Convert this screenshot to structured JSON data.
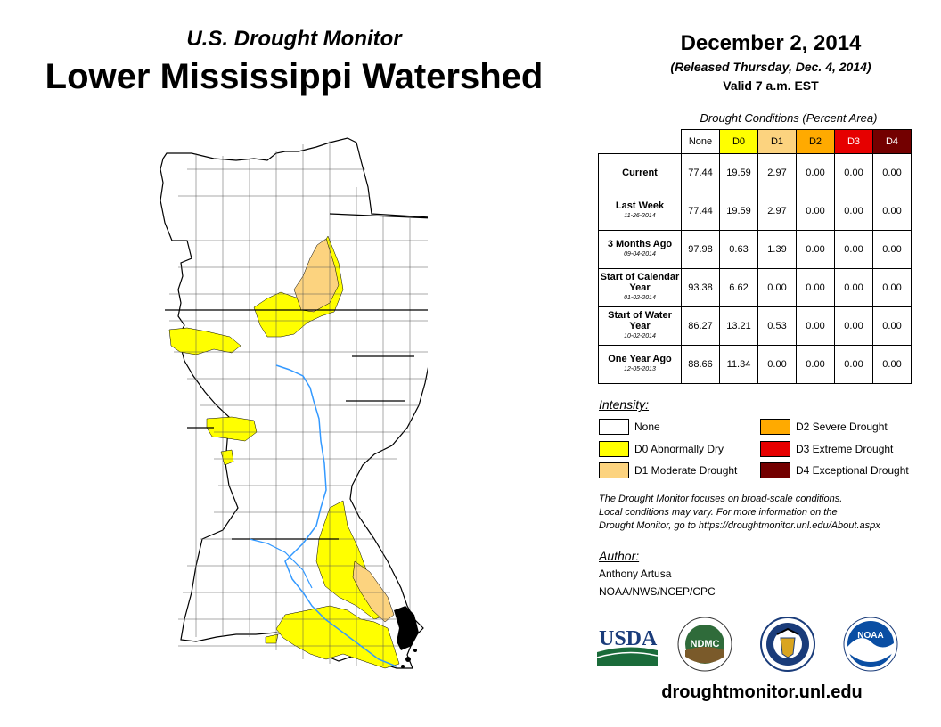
{
  "header": {
    "subtitle": "U.S. Drought Monitor",
    "title": "Lower Mississippi Watershed",
    "date": "December 2, 2014",
    "released": "(Released Thursday, Dec. 4, 2014)",
    "valid": "Valid 7 a.m. EST"
  },
  "conditions": {
    "caption": "Drought Conditions (Percent Area)",
    "columns": [
      "None",
      "D0",
      "D1",
      "D2",
      "D3",
      "D4"
    ],
    "column_colors": [
      "#ffffff",
      "#ffff00",
      "#fcd37f",
      "#ffaa00",
      "#e60000",
      "#730000"
    ],
    "rows": [
      {
        "label": "Current",
        "sub": "",
        "values": [
          "77.44",
          "19.59",
          "2.97",
          "0.00",
          "0.00",
          "0.00"
        ]
      },
      {
        "label": "Last Week",
        "sub": "11-26-2014",
        "values": [
          "77.44",
          "19.59",
          "2.97",
          "0.00",
          "0.00",
          "0.00"
        ]
      },
      {
        "label": "3 Months Ago",
        "sub": "09-04-2014",
        "values": [
          "97.98",
          "0.63",
          "1.39",
          "0.00",
          "0.00",
          "0.00"
        ]
      },
      {
        "label": "Start of Calendar Year",
        "sub": "01-02-2014",
        "values": [
          "93.38",
          "6.62",
          "0.00",
          "0.00",
          "0.00",
          "0.00"
        ]
      },
      {
        "label": "Start of Water Year",
        "sub": "10-02-2014",
        "values": [
          "86.27",
          "13.21",
          "0.53",
          "0.00",
          "0.00",
          "0.00"
        ]
      },
      {
        "label": "One Year Ago",
        "sub": "12-05-2013",
        "values": [
          "88.66",
          "11.34",
          "0.00",
          "0.00",
          "0.00",
          "0.00"
        ]
      }
    ]
  },
  "legend": {
    "heading": "Intensity:",
    "items": [
      {
        "label": "None",
        "color": "#ffffff"
      },
      {
        "label": "D0 Abnormally Dry",
        "color": "#ffff00"
      },
      {
        "label": "D1 Moderate Drought",
        "color": "#fcd37f"
      },
      {
        "label": "D2 Severe Drought",
        "color": "#ffaa00"
      },
      {
        "label": "D3 Extreme Drought",
        "color": "#e60000"
      },
      {
        "label": "D4 Exceptional Drought",
        "color": "#730000"
      }
    ]
  },
  "note": {
    "line1": "The Drought Monitor focuses on broad-scale conditions.",
    "line2": "Local conditions may vary. For more information on the",
    "line3": "Drought Monitor, go to https://droughtmonitor.unl.edu/About.aspx"
  },
  "author": {
    "heading": "Author:",
    "name": "Anthony Artusa",
    "org": "NOAA/NWS/NCEP/CPC"
  },
  "logos": {
    "usda": "USDA",
    "ndmc": "NDMC",
    "noaa": "NOAA"
  },
  "footer": {
    "url": "droughtmonitor.unl.edu"
  },
  "map": {
    "icon": "watershed-map",
    "none_color": "#ffffff",
    "d0_color": "#ffff00",
    "d1_color": "#fcd37f",
    "river_color": "#3399ff",
    "water_color": "#000000"
  }
}
